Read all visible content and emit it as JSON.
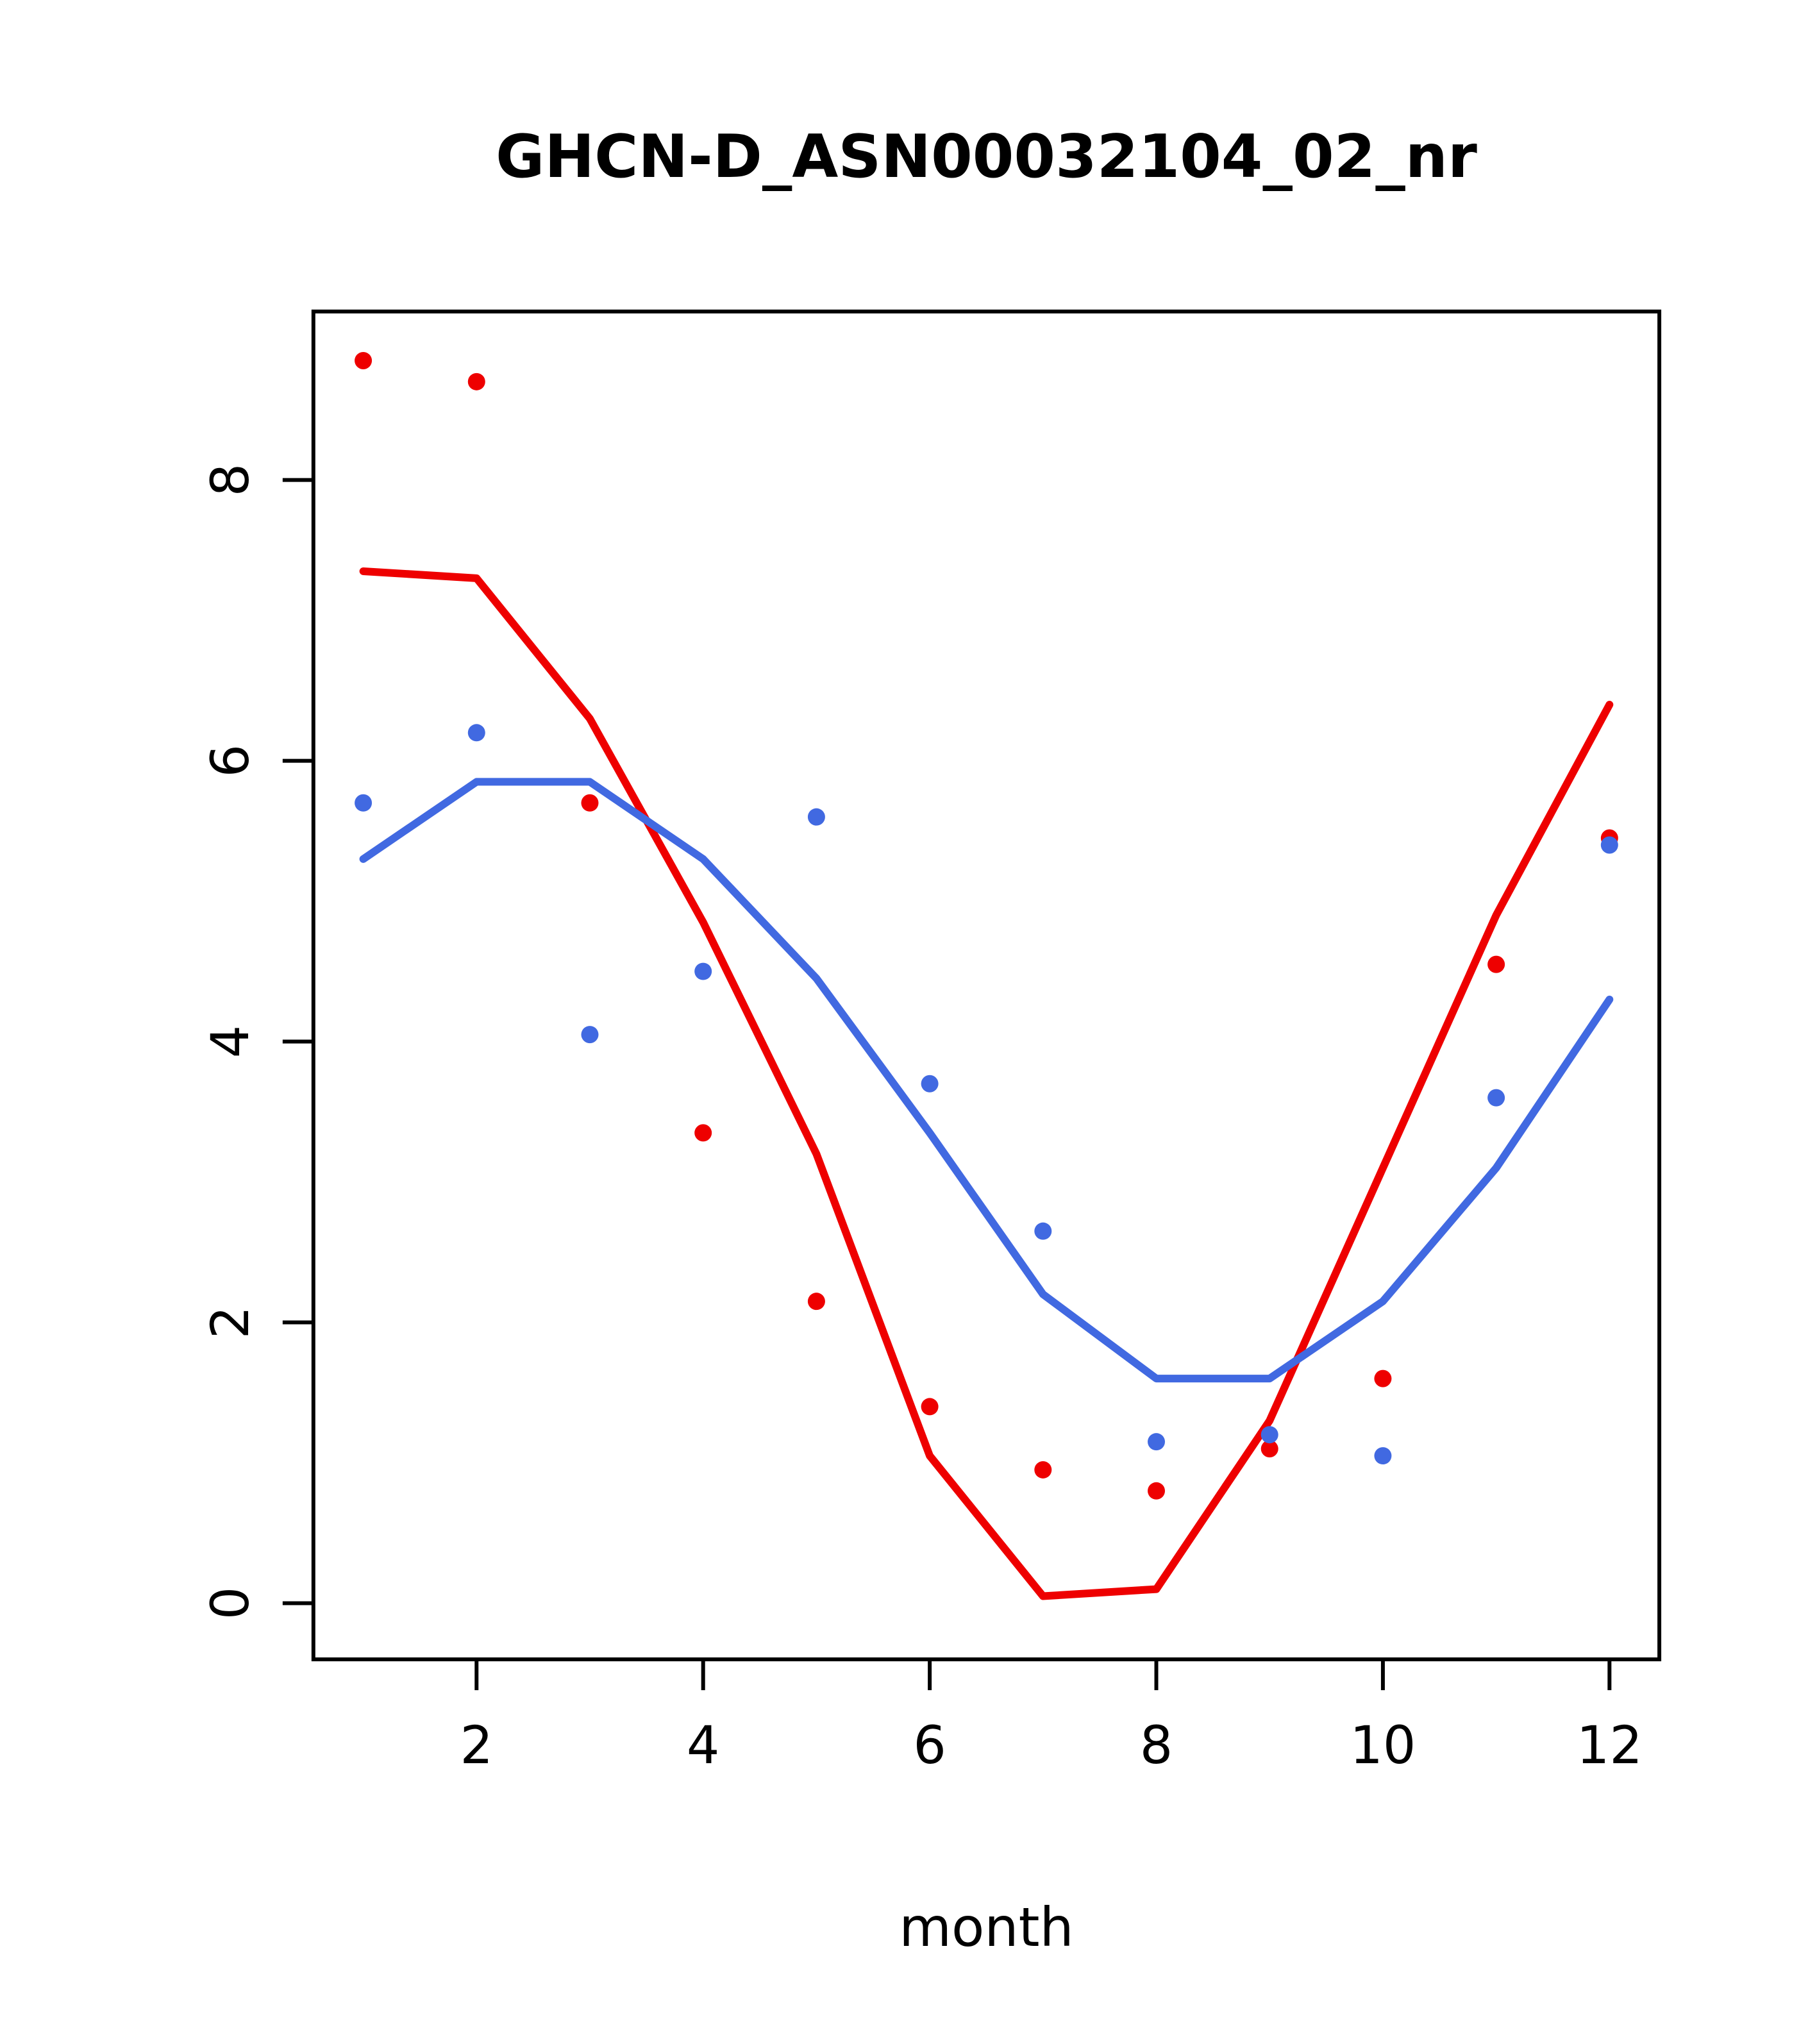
{
  "window": {
    "title": "GHCN-D_ASN00032104_02_nr"
  },
  "chart_data": {
    "type": "scatter",
    "title": "GHCN-D_ASN00032104_02_nr",
    "xlabel": "month",
    "ylabel": "",
    "xlim": [
      0.56,
      12.44
    ],
    "ylim": [
      -0.4,
      9.2
    ],
    "x_ticks": [
      2,
      4,
      6,
      8,
      10,
      12
    ],
    "y_ticks": [
      0,
      2,
      4,
      6,
      8
    ],
    "grid": false,
    "legend": "none",
    "x": [
      1,
      2,
      3,
      4,
      5,
      6,
      7,
      8,
      9,
      10,
      11,
      12
    ],
    "series": [
      {
        "name": "red-observed-points",
        "style": "points",
        "color": "#ee0000",
        "values": [
          8.85,
          8.7,
          5.7,
          3.35,
          2.15,
          1.4,
          0.95,
          0.8,
          1.1,
          1.6,
          4.55,
          5.45
        ]
      },
      {
        "name": "blue-observed-points",
        "style": "points",
        "color": "#4169e1",
        "values": [
          5.7,
          6.2,
          4.05,
          4.5,
          5.6,
          3.7,
          2.65,
          1.15,
          1.2,
          1.05,
          3.6,
          5.4
        ]
      },
      {
        "name": "red-fitted-line",
        "style": "line",
        "color": "#ee0000",
        "values": [
          7.35,
          7.3,
          6.3,
          4.85,
          3.2,
          1.05,
          0.05,
          0.1,
          1.3,
          3.1,
          4.9,
          6.4
        ]
      },
      {
        "name": "blue-fitted-line",
        "style": "line",
        "color": "#4169e1",
        "values": [
          5.3,
          5.85,
          5.85,
          5.3,
          4.45,
          3.35,
          2.2,
          1.6,
          1.6,
          2.15,
          3.1,
          4.3
        ]
      }
    ]
  },
  "colors": {
    "axis": "#000000",
    "background": "#ffffff",
    "red_series": "#ee0000",
    "blue_series": "#4169e1"
  }
}
